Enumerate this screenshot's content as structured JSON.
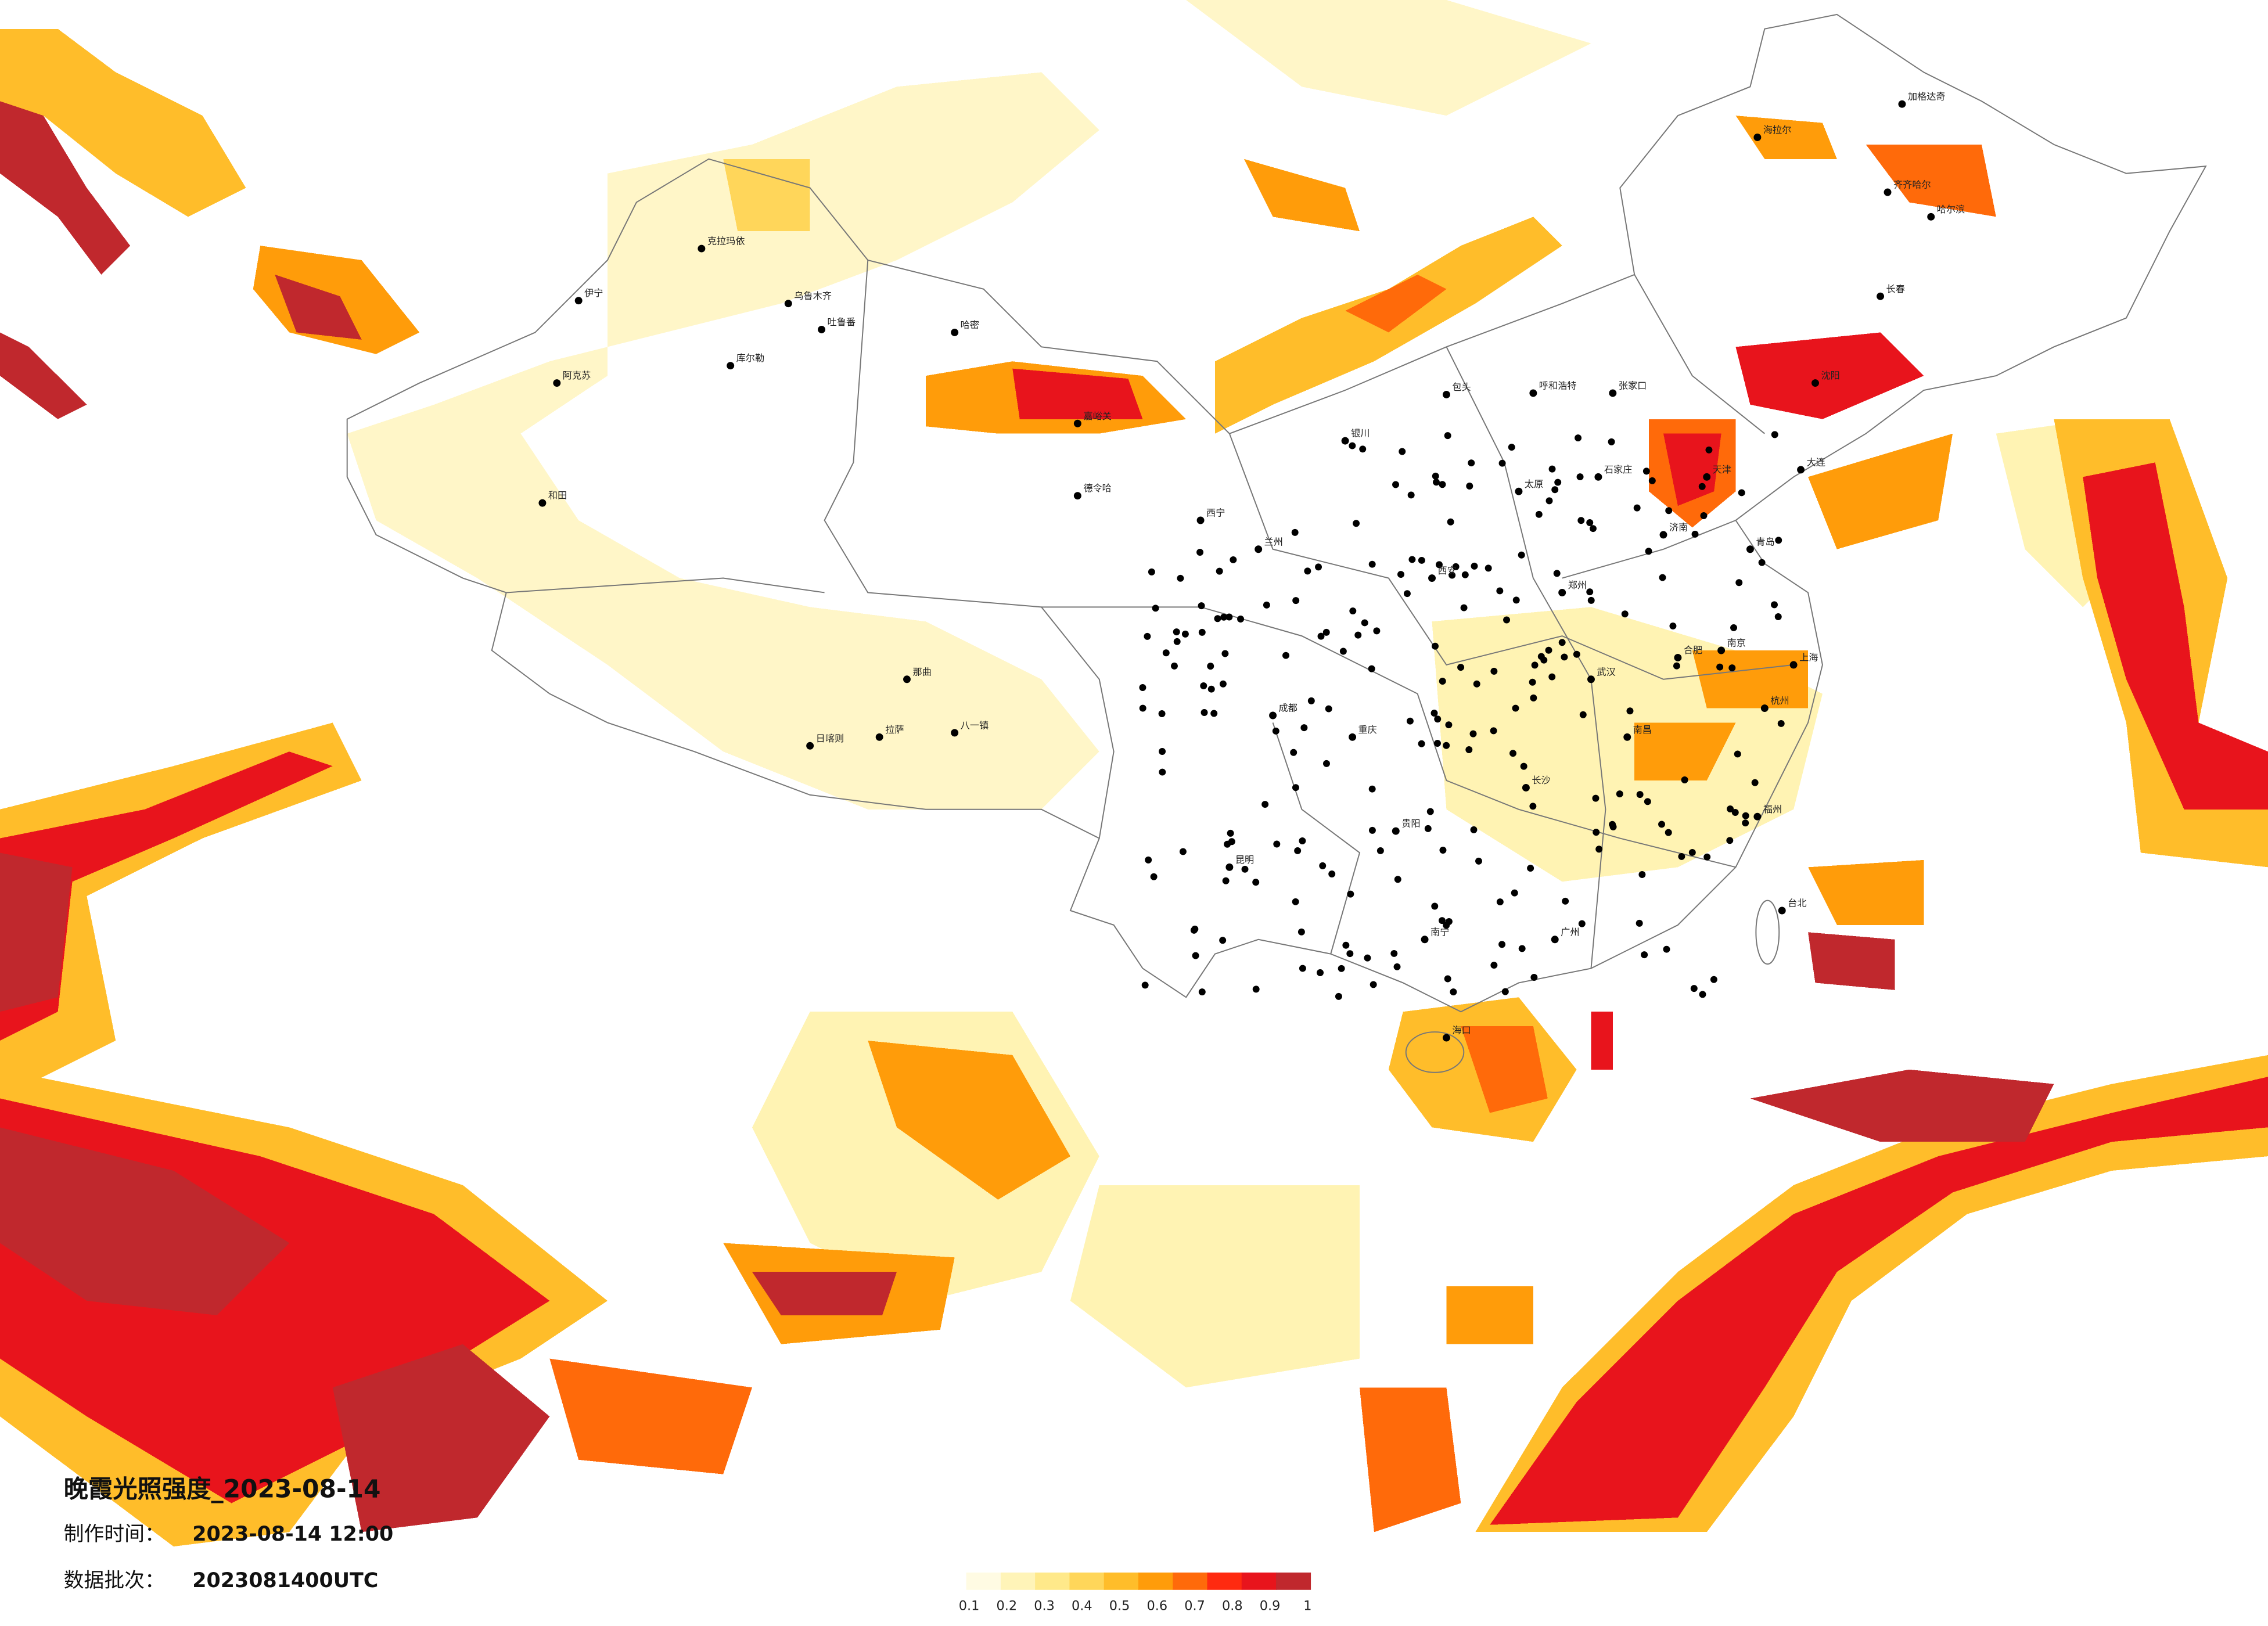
{
  "title": "晚霞光照强度_2023-08-14",
  "made_time": {
    "label": "制作时间：",
    "value": "2023-08-14 12:00"
  },
  "batch": {
    "label": "数据批次：",
    "value": "2023081400UTC"
  },
  "legend": {
    "ticks": [
      0.1,
      0.2,
      0.3,
      0.4,
      0.5,
      0.6,
      0.7,
      0.8,
      0.9,
      1
    ],
    "colors": [
      "#fffbe3",
      "#fff4b8",
      "#ffe98a",
      "#ffd65a",
      "#ffbd2a",
      "#ff9c0a",
      "#ff6a0a",
      "#ff2a10",
      "#e8141c",
      "#c0282d"
    ]
  },
  "cities": [
    "克拉玛依",
    "乌鲁木齐",
    "伊宁",
    "吐鲁番",
    "哈密",
    "库尔勒",
    "阿克苏",
    "和田",
    "日喀则",
    "拉萨",
    "八一镇",
    "那曲",
    "德令哈",
    "嘉峪关",
    "西宁",
    "兰州",
    "银川",
    "呼和浩特",
    "包头",
    "张家口",
    "天津",
    "石家庄",
    "太原",
    "济南",
    "郑州",
    "西安",
    "成都",
    "重庆",
    "贵阳",
    "昆明",
    "南宁",
    "广州",
    "长沙",
    "武汉",
    "南昌",
    "合肥",
    "南京",
    "上海",
    "杭州",
    "福州",
    "台北",
    "海口",
    "沈阳",
    "长春",
    "哈尔滨",
    "齐齐哈尔",
    "海拉尔",
    "加格达奇",
    "大连",
    "青岛"
  ]
}
